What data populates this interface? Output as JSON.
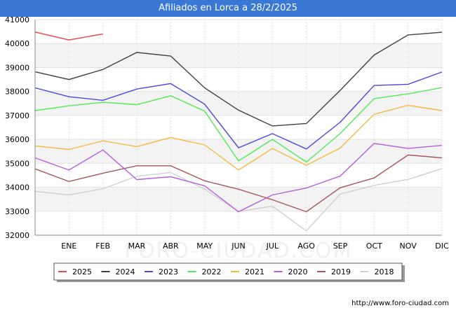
{
  "title": "Afiliados en Lorca a 28/2/2025",
  "footer_url": "http://www.foro-ciudad.com",
  "watermark": "FORO-CIUDAD.COM",
  "chart_data": {
    "type": "line",
    "title": "Afiliados en Lorca a 28/2/2025",
    "xlabel": "",
    "ylabel": "",
    "categories": [
      "",
      "ENE",
      "FEB",
      "MAR",
      "ABR",
      "MAY",
      "JUN",
      "JUL",
      "AGO",
      "SEP",
      "OCT",
      "NOV",
      "DIC"
    ],
    "ylim": [
      32000,
      41000
    ],
    "yticks": [
      32000,
      33000,
      34000,
      35000,
      36000,
      37000,
      38000,
      39000,
      40000,
      41000
    ],
    "ytick_labels": [
      "32000",
      "33000",
      "34000",
      "35000",
      "36000",
      "37000",
      "38000",
      "39000",
      "40000",
      "41000"
    ],
    "grid": true,
    "legend_position": "bottom",
    "series": [
      {
        "name": "2025",
        "color": "#e8474a",
        "values": [
          40480,
          40150,
          40400,
          null,
          null,
          null,
          null,
          null,
          null,
          null,
          null,
          null,
          null
        ]
      },
      {
        "name": "2024",
        "color": "#404040",
        "values": [
          38820,
          38500,
          38920,
          39630,
          39480,
          38150,
          37220,
          36560,
          36660,
          38050,
          39520,
          40360,
          40470
        ]
      },
      {
        "name": "2023",
        "color": "#4b48e0",
        "values": [
          38150,
          37780,
          37630,
          38100,
          38330,
          37470,
          35650,
          36240,
          35600,
          36720,
          38250,
          38300,
          38810
        ]
      },
      {
        "name": "2022",
        "color": "#55e855",
        "values": [
          37200,
          37400,
          37550,
          37450,
          37820,
          37180,
          35100,
          36000,
          35050,
          36250,
          37700,
          37900,
          38160
        ]
      },
      {
        "name": "2021",
        "color": "#f5b942",
        "values": [
          35730,
          35580,
          35940,
          35700,
          36080,
          35770,
          34720,
          35620,
          34920,
          35640,
          37050,
          37420,
          37200
        ]
      },
      {
        "name": "2020",
        "color": "#b75be0",
        "values": [
          35230,
          34720,
          35560,
          34320,
          34440,
          34060,
          32980,
          33680,
          33970,
          34470,
          35830,
          35620,
          35750
        ]
      },
      {
        "name": "2019",
        "color": "#a8555f",
        "values": [
          34770,
          34240,
          34590,
          34900,
          34900,
          34270,
          33920,
          33480,
          32980,
          33980,
          34390,
          35350,
          35230
        ]
      },
      {
        "name": "2018",
        "color": "#d0d0d0",
        "values": [
          33830,
          33680,
          33940,
          34460,
          34620,
          33920,
          32990,
          33210,
          32180,
          33720,
          34080,
          34330,
          34780
        ]
      }
    ]
  }
}
